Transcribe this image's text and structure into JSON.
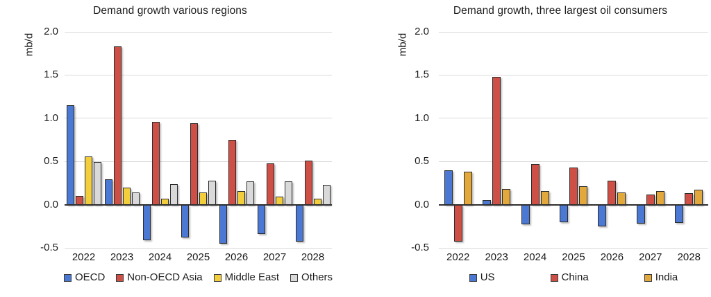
{
  "page": {
    "background": "#ffffff"
  },
  "colors": {
    "axis": "#2e2e2e",
    "grid": "#d9d9d9",
    "text": "#1c1c1c",
    "bar_border": "#2b2b2b",
    "blue": "#4a78d2",
    "red": "#cd4f45",
    "yellow": "#f2ce3d",
    "gray": "#d9d9d9",
    "orange": "#e3a83c"
  },
  "chart_data": [
    {
      "type": "bar",
      "title": "Demand growth various regions",
      "ylabel": "mb/d",
      "xlabel": "",
      "categories": [
        "2022",
        "2023",
        "2024",
        "2025",
        "2026",
        "2027",
        "2028"
      ],
      "series": [
        {
          "name": "OECD",
          "color": "#4a78d2",
          "values": [
            1.15,
            0.29,
            -0.41,
            -0.38,
            -0.45,
            -0.34,
            -0.43
          ]
        },
        {
          "name": "Non-OECD Asia",
          "color": "#cd4f45",
          "values": [
            0.1,
            1.83,
            0.96,
            0.94,
            0.75,
            0.48,
            0.51
          ]
        },
        {
          "name": "Middle East",
          "color": "#f2ce3d",
          "values": [
            0.56,
            0.2,
            0.07,
            0.14,
            0.16,
            0.09,
            0.07
          ]
        },
        {
          "name": "Others",
          "color": "#d9d9d9",
          "values": [
            0.49,
            0.14,
            0.24,
            0.28,
            0.27,
            0.27,
            0.23
          ]
        }
      ],
      "ylim": [
        -0.5,
        2.0
      ],
      "yticks": [
        2.0,
        1.5,
        1.0,
        0.5,
        0.0,
        -0.5
      ],
      "grid": true,
      "legend_position": "bottom"
    },
    {
      "type": "bar",
      "title": "Demand growth, three largest oil consumers",
      "ylabel": "mb/d",
      "xlabel": "",
      "categories": [
        "2022",
        "2023",
        "2024",
        "2025",
        "2026",
        "2027",
        "2028"
      ],
      "series": [
        {
          "name": "US",
          "color": "#4a78d2",
          "values": [
            0.4,
            0.05,
            -0.23,
            -0.2,
            -0.25,
            -0.22,
            -0.21
          ]
        },
        {
          "name": "China",
          "color": "#cd4f45",
          "values": [
            -0.43,
            1.48,
            0.47,
            0.43,
            0.28,
            0.12,
            0.13
          ]
        },
        {
          "name": "India",
          "color": "#e3a83c",
          "values": [
            0.38,
            0.18,
            0.16,
            0.21,
            0.14,
            0.16,
            0.17
          ]
        }
      ],
      "ylim": [
        -0.5,
        2.0
      ],
      "yticks": [
        2.0,
        1.5,
        1.0,
        0.5,
        0.0,
        -0.5
      ],
      "grid": true,
      "legend_position": "bottom"
    }
  ]
}
